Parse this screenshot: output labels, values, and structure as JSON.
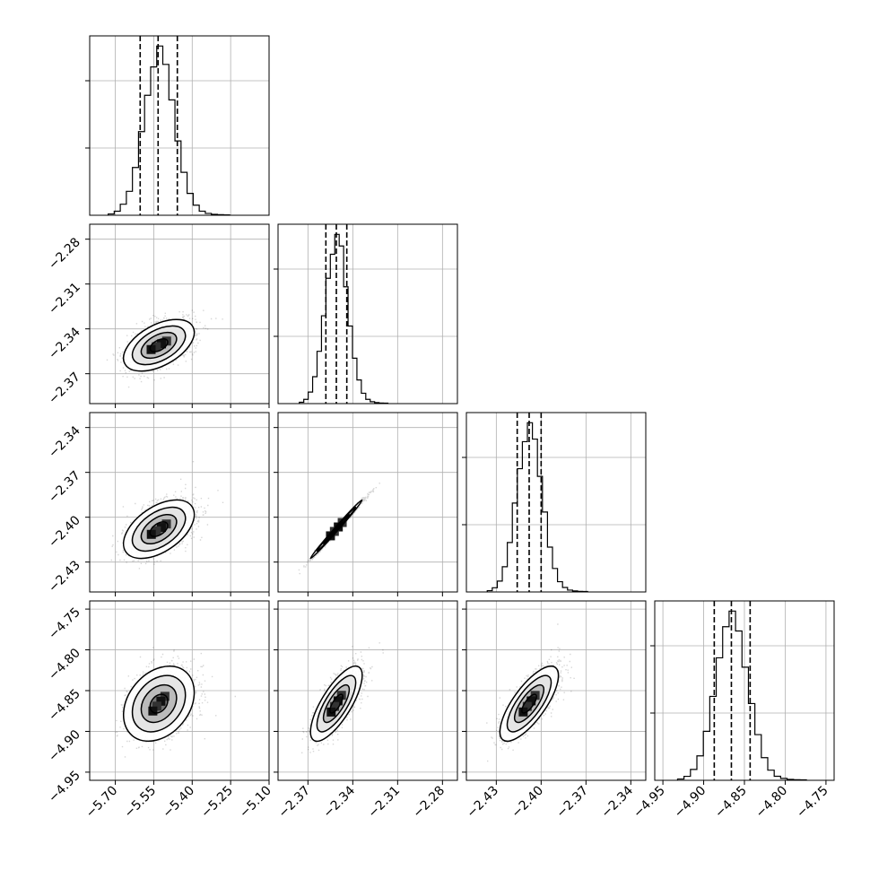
{
  "chart_data": {
    "type": "corner",
    "parameters": [
      {
        "range": [
          -5.8,
          -5.1
        ],
        "ticks": [
          -5.7,
          -5.55,
          -5.4,
          -5.25,
          -5.1
        ],
        "tick_labels": [
          "−5.70",
          "−5.55",
          "−5.40",
          "−5.25",
          "−5.10"
        ],
        "quantiles": [
          -5.603,
          -5.533,
          -5.458
        ],
        "mean": -5.53,
        "sd": 0.06
      },
      {
        "range": [
          -2.39,
          -2.27
        ],
        "ticks": [
          -2.37,
          -2.34,
          -2.31,
          -2.28
        ],
        "tick_labels": [
          "−2.37",
          "−2.34",
          "−2.31",
          "−2.28"
        ],
        "quantiles": [
          -2.358,
          -2.351,
          -2.344
        ],
        "mean": -2.351,
        "sd": 0.0075
      },
      {
        "range": [
          -2.45,
          -2.33
        ],
        "ticks": [
          -2.43,
          -2.4,
          -2.37,
          -2.34
        ],
        "tick_labels": [
          "−2.43",
          "−2.40",
          "−2.37",
          "−2.34"
        ],
        "quantiles": [
          -2.416,
          -2.408,
          -2.4
        ],
        "mean": -2.408,
        "sd": 0.0085
      },
      {
        "range": [
          -4.96,
          -4.74
        ],
        "ticks": [
          -4.95,
          -4.9,
          -4.85,
          -4.8,
          -4.75
        ],
        "tick_labels": [
          "−4.95",
          "−4.90",
          "−4.85",
          "−4.80",
          "−4.75"
        ],
        "quantiles": [
          -4.887,
          -4.866,
          -4.843
        ],
        "mean": -4.866,
        "sd": 0.02
      }
    ],
    "correlations": [
      [
        1.0,
        0.5,
        0.5,
        0.3
      ],
      [
        0.5,
        1.0,
        0.995,
        0.75
      ],
      [
        0.5,
        0.995,
        1.0,
        0.75
      ],
      [
        0.3,
        0.75,
        0.75,
        1.0
      ]
    ],
    "histogram": {
      "bins": 20,
      "quantile_levels": [
        0.16,
        0.5,
        0.84
      ]
    },
    "contours": {
      "levels_sigma": [
        0.5,
        1.0,
        1.5,
        2.0
      ]
    },
    "grid": true
  }
}
